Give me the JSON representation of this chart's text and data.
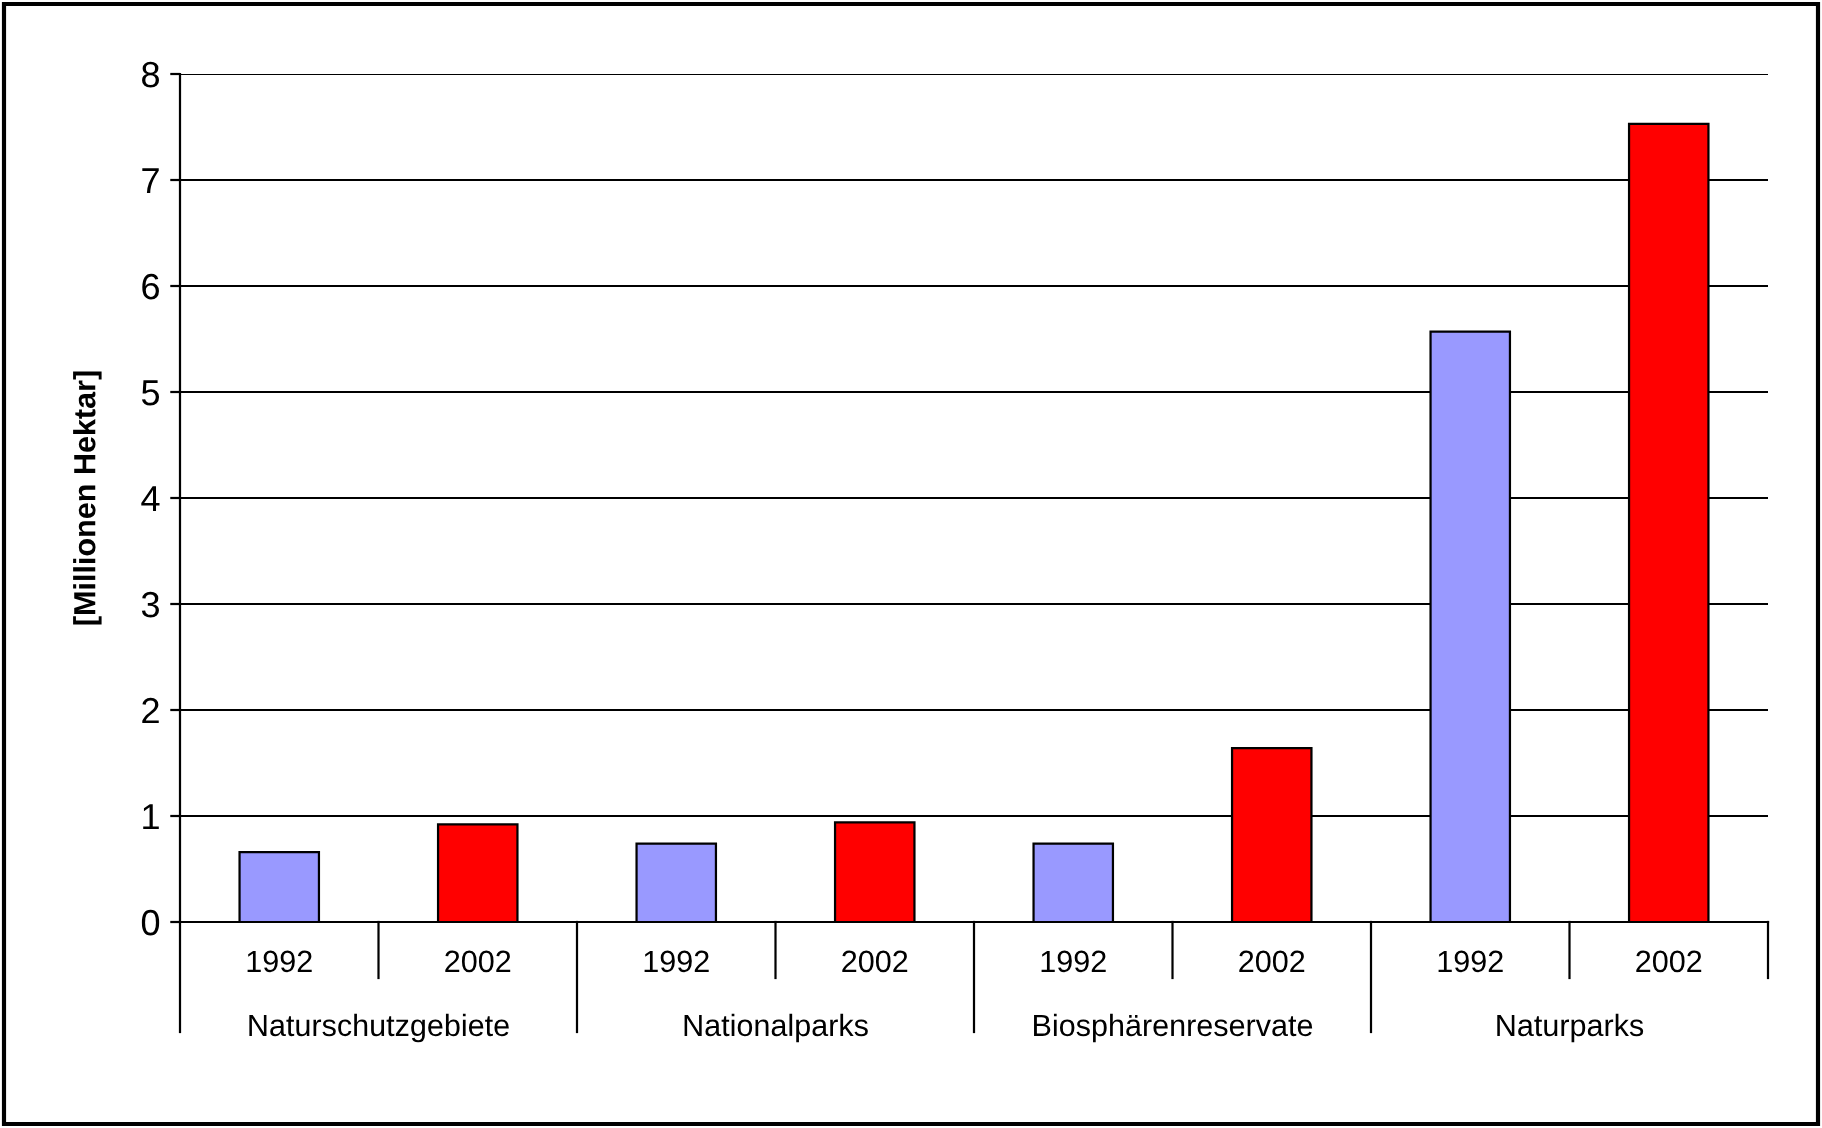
{
  "chart_data": {
    "type": "bar",
    "ylabel": "[Millionen Hektar]",
    "categories": [
      "Naturschutzgebiete",
      "Nationalparks",
      "Biosphärenreservate",
      "Naturparks"
    ],
    "series": [
      {
        "name": "1992",
        "color": "#9999ff",
        "values": [
          0.66,
          0.74,
          0.74,
          5.57
        ]
      },
      {
        "name": "2002",
        "color": "#ff0000",
        "values": [
          0.92,
          0.94,
          1.64,
          7.53
        ]
      }
    ],
    "ylim": [
      0,
      8
    ],
    "yticks": [
      0,
      1,
      2,
      3,
      4,
      5,
      6,
      7,
      8
    ],
    "grid": "y",
    "legend": "bottom"
  }
}
